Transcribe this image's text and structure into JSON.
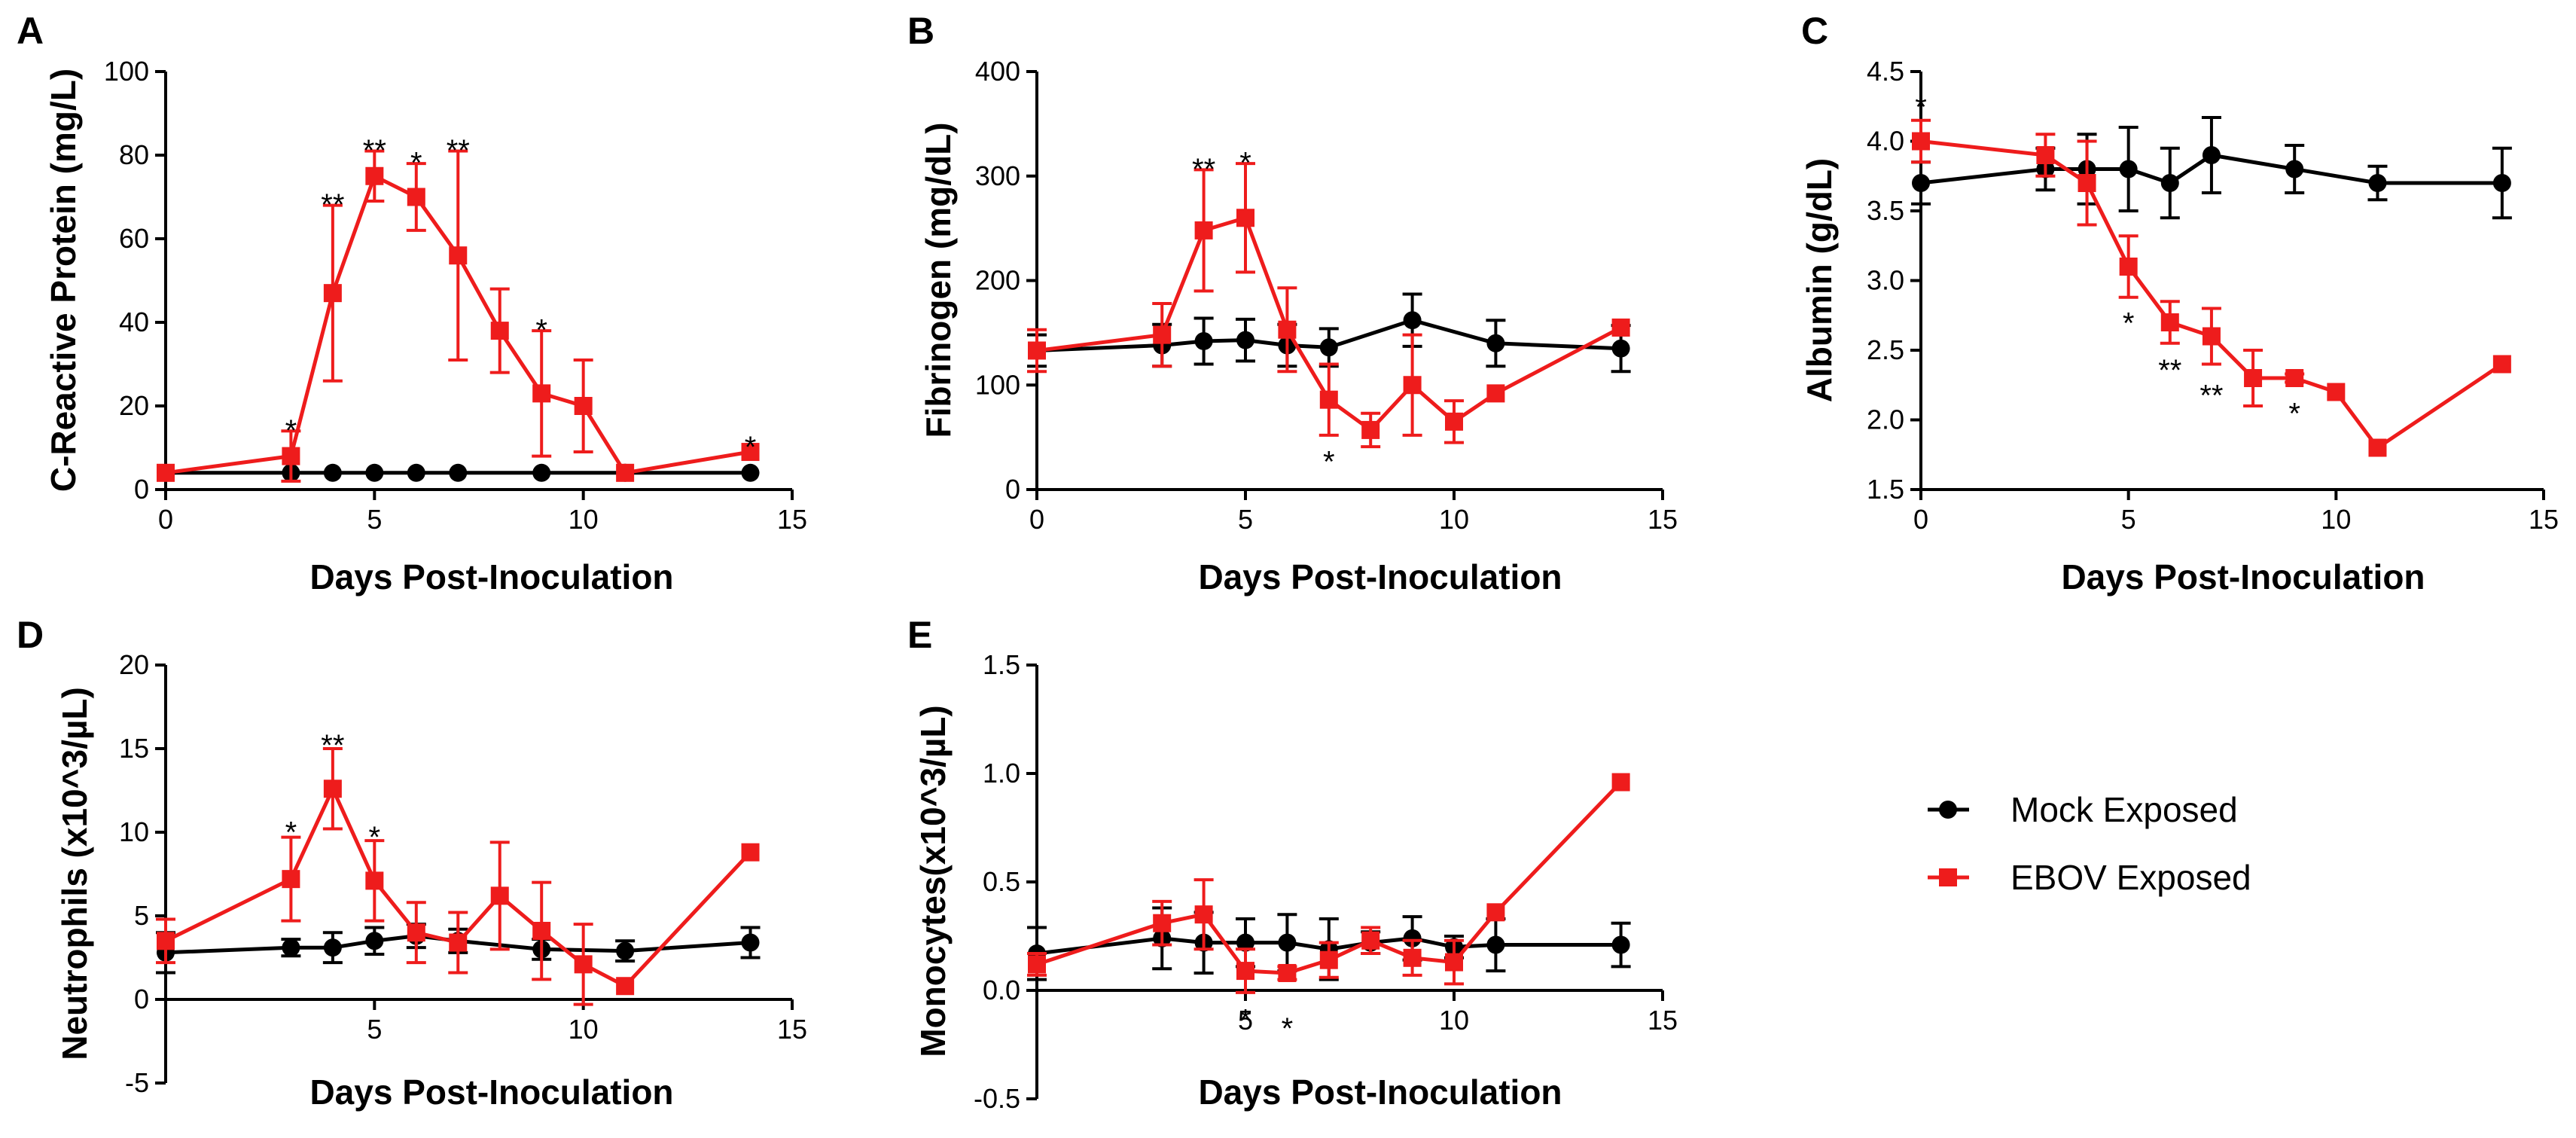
{
  "chart_data": [
    {
      "panel": "A",
      "type": "line",
      "xlabel": "Days Post-Inoculation",
      "ylabel": "C-Reactive Protein (mg/L)",
      "xlim": [
        0,
        15
      ],
      "ylim": [
        0,
        100
      ],
      "xticks": [
        0,
        5,
        10,
        15
      ],
      "yticks": [
        0,
        20,
        40,
        60,
        80,
        100
      ],
      "series": [
        {
          "name": "Mock Exposed",
          "color": "#000000",
          "marker": "circle",
          "x": [
            0,
            3,
            4,
            5,
            6,
            7,
            9,
            11,
            14
          ],
          "y": [
            4,
            4,
            4,
            4,
            4,
            4,
            4,
            4,
            4
          ],
          "err": [
            0,
            0,
            0,
            0,
            0,
            0,
            0,
            0,
            0
          ]
        },
        {
          "name": "EBOV Exposed",
          "color": "#ee1c1c",
          "marker": "square",
          "x": [
            0,
            3,
            4,
            5,
            6,
            7,
            8,
            9,
            10,
            11,
            14
          ],
          "y": [
            4,
            8,
            47,
            75,
            70,
            56,
            38,
            23,
            20,
            4,
            9
          ],
          "err": [
            0,
            6,
            21,
            6,
            8,
            25,
            10,
            15,
            11,
            0,
            0
          ]
        }
      ],
      "annotations": [
        {
          "x": 3,
          "y": 15,
          "text": "*"
        },
        {
          "x": 4,
          "y": 69,
          "text": "**"
        },
        {
          "x": 5,
          "y": 82,
          "text": "**"
        },
        {
          "x": 6,
          "y": 79,
          "text": "*"
        },
        {
          "x": 7,
          "y": 82,
          "text": "**"
        },
        {
          "x": 9,
          "y": 39,
          "text": "*"
        },
        {
          "x": 14,
          "y": 11,
          "text": "*"
        }
      ]
    },
    {
      "panel": "B",
      "type": "line",
      "xlabel": "Days Post-Inoculation",
      "ylabel": "Fibrinogen (mg/dL)",
      "xlim": [
        0,
        15
      ],
      "ylim": [
        0,
        400
      ],
      "xticks": [
        0,
        5,
        10,
        15
      ],
      "yticks": [
        0,
        100,
        200,
        300,
        400
      ],
      "series": [
        {
          "name": "Mock Exposed",
          "color": "#000000",
          "marker": "circle",
          "x": [
            0,
            3,
            4,
            5,
            6,
            7,
            9,
            11,
            14
          ],
          "y": [
            133,
            138,
            142,
            143,
            138,
            136,
            162,
            140,
            135
          ],
          "err": [
            15,
            20,
            22,
            20,
            20,
            18,
            25,
            22,
            22
          ]
        },
        {
          "name": "EBOV Exposed",
          "color": "#ee1c1c",
          "marker": "square",
          "x": [
            0,
            3,
            4,
            5,
            6,
            7,
            8,
            9,
            10,
            11,
            14
          ],
          "y": [
            133,
            148,
            248,
            260,
            153,
            86,
            57,
            100,
            65,
            92,
            155
          ],
          "err": [
            20,
            30,
            58,
            52,
            40,
            34,
            16,
            48,
            20,
            0,
            0
          ]
        }
      ],
      "annotations": [
        {
          "x": 4,
          "y": 310,
          "text": "**"
        },
        {
          "x": 5,
          "y": 316,
          "text": "*"
        },
        {
          "x": 7,
          "y": 30,
          "text": "*"
        }
      ]
    },
    {
      "panel": "C",
      "type": "line",
      "xlabel": "Days Post-Inoculation",
      "ylabel": "Albumin  (g/dL)",
      "xlim": [
        0,
        15
      ],
      "ylim": [
        1.5,
        4.5
      ],
      "xticks": [
        0,
        5,
        10,
        15
      ],
      "yticks": [
        1.5,
        2.0,
        2.5,
        3.0,
        3.5,
        4.0,
        4.5
      ],
      "series": [
        {
          "name": "Mock Exposed",
          "color": "#000000",
          "marker": "circle",
          "x": [
            0,
            3,
            4,
            5,
            6,
            7,
            9,
            11,
            14
          ],
          "y": [
            3.7,
            3.8,
            3.8,
            3.8,
            3.7,
            3.9,
            3.8,
            3.7,
            3.7
          ],
          "err": [
            0.15,
            0.15,
            0.25,
            0.3,
            0.25,
            0.27,
            0.17,
            0.12,
            0.25
          ]
        },
        {
          "name": "EBOV Exposed",
          "color": "#ee1c1c",
          "marker": "square",
          "x": [
            0,
            3,
            4,
            5,
            6,
            7,
            8,
            9,
            10,
            11,
            14
          ],
          "y": [
            4.0,
            3.9,
            3.7,
            3.1,
            2.7,
            2.6,
            2.3,
            2.3,
            2.2,
            1.8,
            2.4
          ],
          "err": [
            0.15,
            0.15,
            0.3,
            0.22,
            0.15,
            0.2,
            0.2,
            0.03,
            0,
            0,
            0
          ]
        }
      ],
      "annotations": [
        {
          "x": 0,
          "y": 4.27,
          "text": "*"
        },
        {
          "x": 5,
          "y": 2.72,
          "text": "*"
        },
        {
          "x": 6,
          "y": 2.38,
          "text": "**"
        },
        {
          "x": 7,
          "y": 2.2,
          "text": "**"
        },
        {
          "x": 9,
          "y": 2.07,
          "text": "*"
        }
      ]
    },
    {
      "panel": "D",
      "type": "line",
      "xlabel": "Days Post-Inoculation",
      "ylabel": "Neutrophils (x10^3/µL)",
      "xlim": [
        0,
        15
      ],
      "ylim": [
        -5,
        20
      ],
      "xticks": [
        5,
        10,
        15
      ],
      "yticks": [
        -5,
        0,
        5,
        10,
        15,
        20
      ],
      "series": [
        {
          "name": "Mock Exposed",
          "color": "#000000",
          "marker": "circle",
          "x": [
            0,
            3,
            4,
            5,
            6,
            7,
            9,
            11,
            14
          ],
          "y": [
            2.8,
            3.1,
            3.1,
            3.5,
            3.8,
            3.5,
            3.0,
            2.9,
            3.4
          ],
          "err": [
            1.2,
            0.5,
            0.9,
            0.8,
            0.7,
            0.7,
            0.6,
            0.6,
            0.9
          ]
        },
        {
          "name": "EBOV Exposed",
          "color": "#ee1c1c",
          "marker": "square",
          "x": [
            0,
            3,
            4,
            5,
            6,
            7,
            8,
            9,
            10,
            11,
            14
          ],
          "y": [
            3.5,
            7.2,
            12.6,
            7.1,
            4.0,
            3.4,
            6.2,
            4.1,
            2.1,
            0.8,
            8.8
          ],
          "err": [
            1.3,
            2.5,
            2.4,
            2.4,
            1.8,
            1.8,
            3.2,
            2.9,
            2.4,
            0,
            0
          ]
        }
      ],
      "annotations": [
        {
          "x": 3,
          "y": 10.2,
          "text": "*"
        },
        {
          "x": 4,
          "y": 15.4,
          "text": "**"
        },
        {
          "x": 5,
          "y": 9.9,
          "text": "*"
        }
      ]
    },
    {
      "panel": "E",
      "type": "line",
      "xlabel": "Days Post-Inoculation",
      "ylabel": "Monocytes(x10^3/µL)",
      "xlim": [
        0,
        15
      ],
      "ylim": [
        -0.5,
        1.5
      ],
      "xticks": [
        5,
        10,
        15
      ],
      "yticks": [
        -0.5,
        0.0,
        0.5,
        1.0,
        1.5
      ],
      "series": [
        {
          "name": "Mock Exposed",
          "color": "#000000",
          "marker": "circle",
          "x": [
            0,
            3,
            4,
            5,
            6,
            7,
            8,
            9,
            10,
            11,
            14
          ],
          "y": [
            0.17,
            0.24,
            0.22,
            0.22,
            0.22,
            0.19,
            0.22,
            0.24,
            0.2,
            0.21,
            0.21
          ],
          "err": [
            0.12,
            0.14,
            0.14,
            0.11,
            0.13,
            0.14,
            0.05,
            0.1,
            0.05,
            0.12,
            0.1
          ]
        },
        {
          "name": "EBOV Exposed",
          "color": "#ee1c1c",
          "marker": "square",
          "x": [
            0,
            3,
            4,
            5,
            6,
            7,
            8,
            9,
            10,
            11,
            14
          ],
          "y": [
            0.12,
            0.31,
            0.35,
            0.09,
            0.08,
            0.14,
            0.23,
            0.15,
            0.13,
            0.36,
            0.96
          ],
          "err": [
            0.05,
            0.1,
            0.16,
            0.1,
            0.03,
            0.08,
            0.06,
            0.08,
            0.1,
            0,
            0
          ]
        }
      ],
      "annotations": [
        {
          "x": 5,
          "y": -0.12,
          "text": "*"
        },
        {
          "x": 6,
          "y": -0.16,
          "text": "*"
        }
      ]
    }
  ],
  "legend": {
    "position": "lower-right",
    "items": [
      {
        "label": "Mock Exposed",
        "color": "#000000",
        "marker": "circle"
      },
      {
        "label": "EBOV Exposed",
        "color": "#ee1c1c",
        "marker": "square"
      }
    ]
  }
}
